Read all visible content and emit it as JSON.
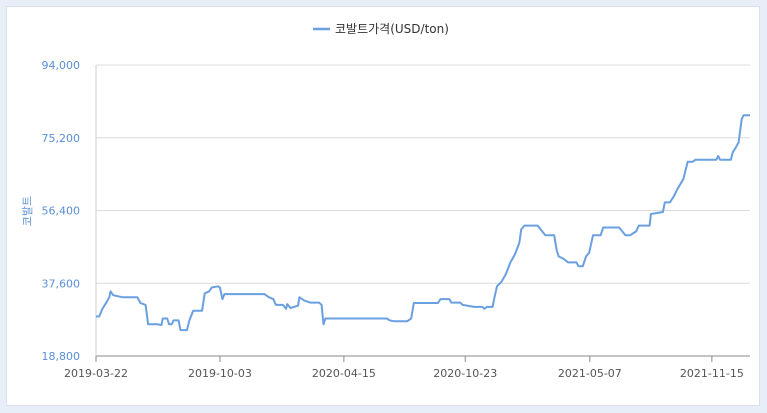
{
  "chart_data": {
    "type": "line",
    "legend": "코발트가격(USD/ton)",
    "legend_position": "top-center",
    "ylabel": "코발트",
    "ylim": [
      18800,
      94000
    ],
    "y_ticks": [
      "94,000",
      "75,200",
      "56,400",
      "37,600",
      "18,800"
    ],
    "x_ticks": [
      "2019-03-22",
      "2019-10-03",
      "2020-04-15",
      "2020-10-23",
      "2021-05-07",
      "2021-11-15"
    ],
    "grid": "horizontal",
    "color": "#6a9fe0",
    "series": [
      {
        "name": "코발트가격(USD/ton)",
        "points": [
          [
            "2019-03-22",
            29000
          ],
          [
            "2019-03-27",
            29000
          ],
          [
            "2019-04-01",
            31000
          ],
          [
            "2019-04-08",
            32800
          ],
          [
            "2019-04-12",
            34000
          ],
          [
            "2019-04-14",
            35500
          ],
          [
            "2019-04-18",
            34500
          ],
          [
            "2019-05-02",
            34000
          ],
          [
            "2019-05-15",
            34000
          ],
          [
            "2019-05-26",
            34000
          ],
          [
            "2019-05-31",
            32500
          ],
          [
            "2019-06-08",
            32000
          ],
          [
            "2019-06-12",
            27000
          ],
          [
            "2019-06-26",
            27000
          ],
          [
            "2019-07-03",
            26800
          ],
          [
            "2019-07-05",
            28500
          ],
          [
            "2019-07-12",
            28500
          ],
          [
            "2019-07-15",
            27000
          ],
          [
            "2019-07-19",
            27000
          ],
          [
            "2019-07-22",
            28000
          ],
          [
            "2019-07-30",
            28000
          ],
          [
            "2019-08-02",
            25500
          ],
          [
            "2019-08-12",
            25500
          ],
          [
            "2019-08-16",
            28000
          ],
          [
            "2019-08-22",
            30500
          ],
          [
            "2019-09-05",
            30500
          ],
          [
            "2019-09-09",
            35000
          ],
          [
            "2019-09-16",
            35500
          ],
          [
            "2019-09-20",
            36500
          ],
          [
            "2019-09-30",
            36800
          ],
          [
            "2019-10-03",
            36500
          ],
          [
            "2019-10-07",
            33500
          ],
          [
            "2019-10-10",
            34800
          ],
          [
            "2019-10-17",
            34800
          ],
          [
            "2019-11-15",
            34800
          ],
          [
            "2019-12-12",
            34800
          ],
          [
            "2019-12-19",
            34000
          ],
          [
            "2019-12-26",
            33500
          ],
          [
            "2019-12-30",
            32000
          ],
          [
            "2020-01-10",
            32000
          ],
          [
            "2020-01-15",
            31000
          ],
          [
            "2020-01-17",
            32200
          ],
          [
            "2020-01-22",
            31200
          ],
          [
            "2020-02-03",
            31800
          ],
          [
            "2020-02-05",
            34000
          ],
          [
            "2020-02-12",
            33200
          ],
          [
            "2020-02-22",
            32600
          ],
          [
            "2020-03-07",
            32600
          ],
          [
            "2020-03-11",
            32000
          ],
          [
            "2020-03-14",
            27000
          ],
          [
            "2020-03-17",
            28500
          ],
          [
            "2020-04-15",
            28500
          ],
          [
            "2020-05-20",
            28500
          ],
          [
            "2020-06-22",
            28500
          ],
          [
            "2020-06-26",
            28000
          ],
          [
            "2020-07-03",
            27800
          ],
          [
            "2020-07-24",
            27800
          ],
          [
            "2020-07-30",
            28500
          ],
          [
            "2020-08-03",
            32500
          ],
          [
            "2020-08-20",
            32500
          ],
          [
            "2020-09-10",
            32500
          ],
          [
            "2020-09-14",
            33500
          ],
          [
            "2020-09-28",
            33500
          ],
          [
            "2020-10-01",
            32600
          ],
          [
            "2020-10-15",
            32600
          ],
          [
            "2020-10-19",
            32000
          ],
          [
            "2020-11-06",
            31500
          ],
          [
            "2020-11-19",
            31500
          ],
          [
            "2020-11-22",
            31000
          ],
          [
            "2020-11-26",
            31500
          ],
          [
            "2020-12-05",
            31500
          ],
          [
            "2020-12-08",
            34000
          ],
          [
            "2020-12-12",
            36800
          ],
          [
            "2020-12-19",
            38000
          ],
          [
            "2020-12-26",
            40000
          ],
          [
            "2021-01-02",
            43000
          ],
          [
            "2021-01-09",
            45000
          ],
          [
            "2021-01-16",
            48000
          ],
          [
            "2021-01-19",
            51500
          ],
          [
            "2021-01-24",
            52500
          ],
          [
            "2021-02-14",
            52500
          ],
          [
            "2021-02-21",
            51000
          ],
          [
            "2021-02-26",
            50000
          ],
          [
            "2021-03-12",
            50000
          ],
          [
            "2021-03-16",
            46000
          ],
          [
            "2021-03-19",
            44500
          ],
          [
            "2021-03-26",
            44000
          ],
          [
            "2021-04-03",
            43000
          ],
          [
            "2021-04-16",
            43000
          ],
          [
            "2021-04-19",
            42000
          ],
          [
            "2021-04-26",
            42000
          ],
          [
            "2021-05-01",
            44500
          ],
          [
            "2021-05-06",
            45500
          ],
          [
            "2021-05-12",
            50000
          ],
          [
            "2021-05-24",
            50000
          ],
          [
            "2021-05-28",
            52000
          ],
          [
            "2021-06-10",
            52000
          ],
          [
            "2021-06-22",
            52000
          ],
          [
            "2021-06-27",
            51000
          ],
          [
            "2021-07-02",
            50000
          ],
          [
            "2021-07-09",
            50000
          ],
          [
            "2021-07-19",
            51000
          ],
          [
            "2021-07-23",
            52500
          ],
          [
            "2021-08-09",
            52500
          ],
          [
            "2021-08-11",
            55500
          ],
          [
            "2021-08-30",
            56000
          ],
          [
            "2021-09-02",
            58500
          ],
          [
            "2021-09-10",
            58500
          ],
          [
            "2021-09-16",
            60000
          ],
          [
            "2021-09-22",
            62000
          ],
          [
            "2021-10-01",
            64500
          ],
          [
            "2021-10-08",
            69000
          ],
          [
            "2021-10-16",
            69000
          ],
          [
            "2021-10-20",
            69500
          ],
          [
            "2021-11-15",
            69500
          ],
          [
            "2021-11-22",
            69500
          ],
          [
            "2021-11-25",
            70500
          ],
          [
            "2021-11-28",
            69500
          ],
          [
            "2021-12-15",
            69500
          ],
          [
            "2021-12-18",
            71500
          ],
          [
            "2021-12-22",
            72500
          ],
          [
            "2021-12-27",
            74000
          ],
          [
            "2022-01-01",
            80000
          ],
          [
            "2022-01-04",
            81000
          ],
          [
            "2022-01-14",
            81000
          ]
        ]
      }
    ]
  }
}
